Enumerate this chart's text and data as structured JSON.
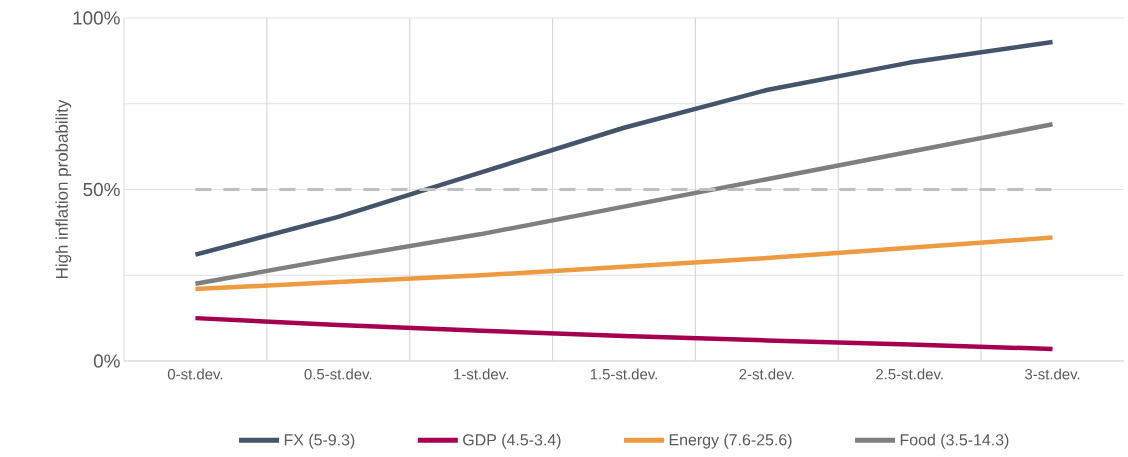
{
  "chart_data": {
    "type": "line",
    "ylabel": "High inflation probability",
    "categories": [
      "0-st.dev.",
      "0.5-st.dev.",
      "1-st.dev.",
      "1.5-st.dev.",
      "2-st.dev.",
      "2.5-st.dev.",
      "3-st.dev."
    ],
    "series": [
      {
        "name": "FX (5-9.3)",
        "color": "#44546a",
        "values": [
          31,
          42,
          55,
          68,
          79,
          87,
          93
        ]
      },
      {
        "name": "GDP (4.5-3.4)",
        "color": "#a50050",
        "values": [
          12.5,
          10.5,
          8.8,
          7.3,
          6,
          4.8,
          3.5
        ]
      },
      {
        "name": "Energy (7.6-25.6)",
        "color": "#ed9a40",
        "values": [
          21,
          23,
          25,
          27.5,
          30,
          33,
          36
        ]
      },
      {
        "name": "Food (3.5-14.3)",
        "color": "#7f7f7f",
        "values": [
          22.5,
          30,
          37,
          45,
          53,
          61,
          69
        ]
      }
    ],
    "ylim": [
      0,
      100
    ],
    "yticks": [
      {
        "value": 0,
        "label": "0%"
      },
      {
        "value": 25,
        "label": null
      },
      {
        "value": 50,
        "label": "50%"
      },
      {
        "value": 75,
        "label": null
      },
      {
        "value": 100,
        "label": "100%"
      }
    ],
    "ref_lines": [
      {
        "axis": "y",
        "value": 50,
        "color": "#bfbfbf",
        "line_style": "dashed"
      }
    ],
    "grid": true,
    "legend": "bottom",
    "marker": "none",
    "line_style": "solid"
  }
}
